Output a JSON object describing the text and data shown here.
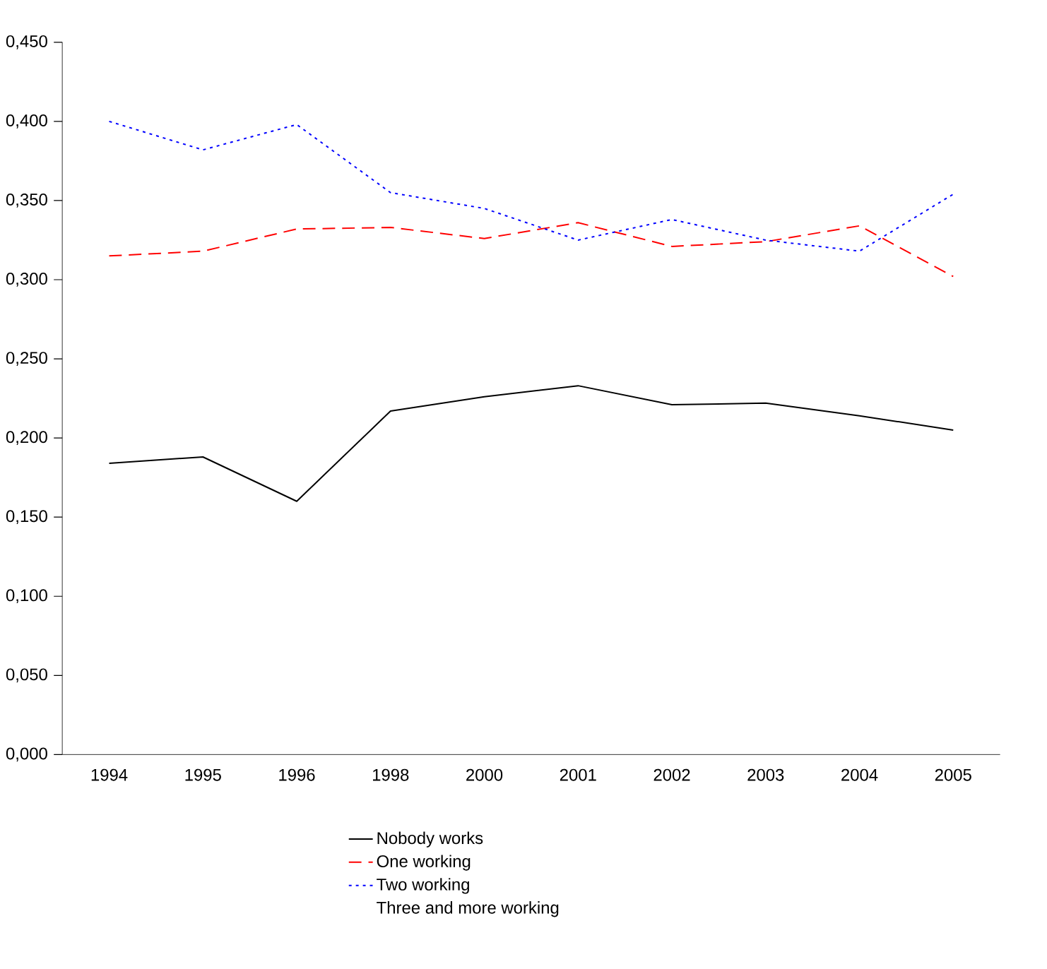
{
  "chart_data": {
    "type": "line",
    "categories": [
      "1994",
      "1995",
      "1996",
      "1998",
      "2000",
      "2001",
      "2002",
      "2003",
      "2004",
      "2005"
    ],
    "series": [
      {
        "name": "Nobody works",
        "color": "#000000",
        "line_style": "solid",
        "values": [
          0.184,
          0.188,
          0.16,
          0.217,
          0.226,
          0.233,
          0.221,
          0.222,
          0.214,
          0.205
        ]
      },
      {
        "name": "One working",
        "color": "#ff0000",
        "line_style": "dashed",
        "values": [
          0.315,
          0.318,
          0.332,
          0.333,
          0.326,
          0.336,
          0.321,
          0.324,
          0.334,
          0.302
        ]
      },
      {
        "name": "Two working",
        "color": "#0000ff",
        "line_style": "dotted",
        "values": [
          0.4,
          0.382,
          0.398,
          0.355,
          0.345,
          0.325,
          0.338,
          0.325,
          0.318,
          0.354
        ]
      },
      {
        "name": "Three and more working",
        "line_style": "solid",
        "values": [
          null,
          null,
          null,
          null,
          null,
          null,
          null,
          null,
          null,
          null
        ]
      }
    ],
    "ylim": [
      0,
      0.45
    ],
    "yticks": [
      {
        "value": 0,
        "label": "0,000"
      },
      {
        "value": 0.05,
        "label": "0,050"
      },
      {
        "value": 0.1,
        "label": "0,100"
      },
      {
        "value": 0.15,
        "label": "0,150"
      },
      {
        "value": 0.2,
        "label": "0,200"
      },
      {
        "value": 0.25,
        "label": "0,250"
      },
      {
        "value": 0.3,
        "label": "0,300"
      },
      {
        "value": 0.35,
        "label": "0,350"
      },
      {
        "value": 0.4,
        "label": "0,400"
      },
      {
        "value": 0.45,
        "label": "0,450"
      }
    ],
    "grid": false,
    "legend": "bottom",
    "marker": "none"
  }
}
